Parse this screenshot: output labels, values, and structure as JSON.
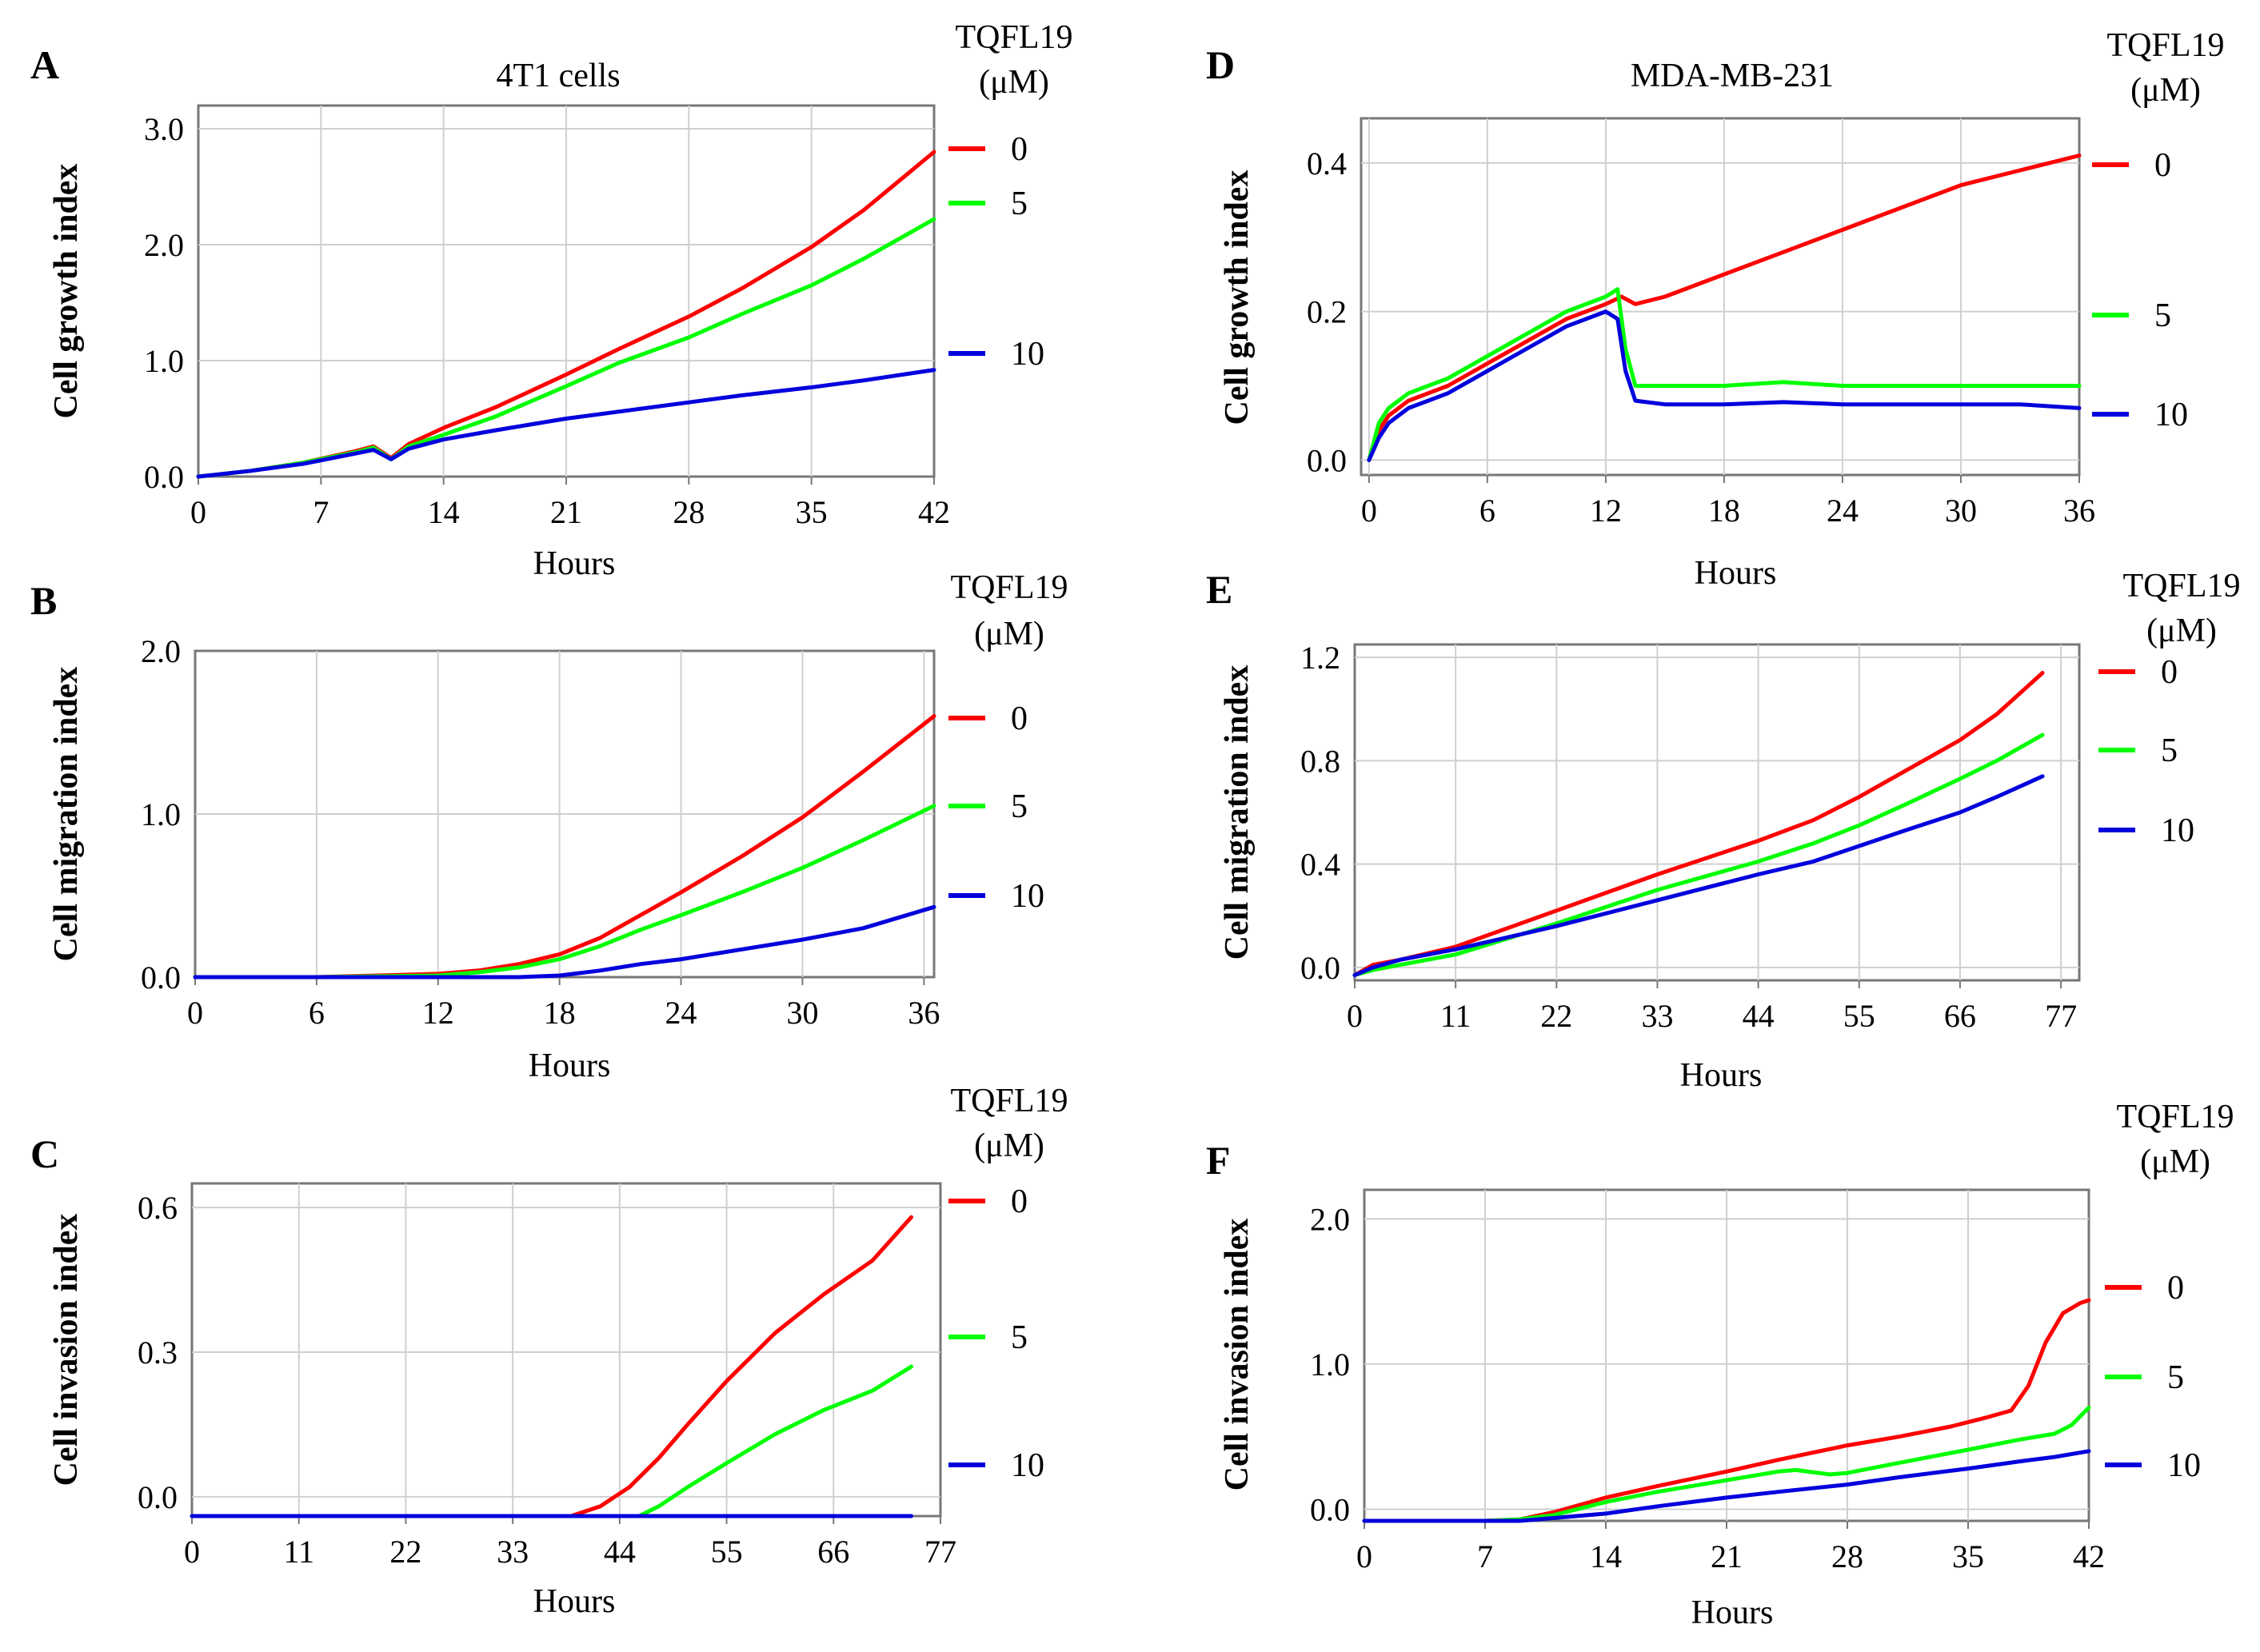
{
  "figure": {
    "colors": {
      "dose_0": "#ff0000",
      "dose_5": "#00ff00",
      "dose_10": "#0000dd",
      "grid": "#cfcfcf",
      "axis": "#777777",
      "text": "#000000"
    }
  },
  "chart_data": [
    {
      "type": "line",
      "panel": "A",
      "title": "4T1 cells",
      "xlabel": "Hours",
      "ylabel": "Cell growth index",
      "legend_title": [
        "TQFL19",
        "(μM)"
      ],
      "xticks": [
        0,
        7,
        14,
        21,
        28,
        35,
        42
      ],
      "yticks": [
        0.0,
        1.0,
        2.0,
        3.0
      ],
      "ytick_labels": [
        "0.0",
        "1.0",
        "2.0",
        "3.0"
      ],
      "xlim": [
        0,
        42
      ],
      "ylim": [
        0,
        3.2
      ],
      "series": [
        {
          "name": "0",
          "color": "#ff0000",
          "x": [
            0,
            3,
            6,
            9,
            10,
            11,
            12,
            14,
            17,
            21,
            24,
            28,
            31,
            35,
            38,
            42
          ],
          "y": [
            0.0,
            0.05,
            0.12,
            0.22,
            0.26,
            0.16,
            0.28,
            0.42,
            0.6,
            0.88,
            1.1,
            1.38,
            1.62,
            1.98,
            2.3,
            2.8
          ]
        },
        {
          "name": "5",
          "color": "#00ff00",
          "x": [
            0,
            3,
            6,
            9,
            10,
            11,
            12,
            14,
            17,
            21,
            24,
            28,
            31,
            35,
            38,
            42
          ],
          "y": [
            0.0,
            0.05,
            0.12,
            0.21,
            0.25,
            0.15,
            0.26,
            0.36,
            0.52,
            0.78,
            0.98,
            1.2,
            1.4,
            1.65,
            1.88,
            2.22
          ]
        },
        {
          "name": "10",
          "color": "#0000dd",
          "x": [
            0,
            3,
            6,
            9,
            10,
            11,
            12,
            14,
            17,
            21,
            24,
            28,
            31,
            35,
            38,
            42
          ],
          "y": [
            0.0,
            0.05,
            0.11,
            0.2,
            0.23,
            0.15,
            0.24,
            0.32,
            0.4,
            0.5,
            0.56,
            0.64,
            0.7,
            0.77,
            0.83,
            0.92
          ]
        }
      ]
    },
    {
      "type": "line",
      "panel": "B",
      "xlabel": "Hours",
      "ylabel": "Cell migration index",
      "legend_title": [
        "TQFL19",
        "(μM)"
      ],
      "xticks": [
        0,
        6,
        12,
        18,
        24,
        30,
        36
      ],
      "yticks": [
        0.0,
        1.0,
        2.0
      ],
      "ytick_labels": [
        "0.0",
        "1.0",
        "2.0"
      ],
      "xlim": [
        0,
        36.5
      ],
      "ylim": [
        0,
        2.0
      ],
      "series": [
        {
          "name": "0",
          "color": "#ff0000",
          "x": [
            0,
            6,
            12,
            14,
            16,
            18,
            20,
            22,
            24,
            27,
            30,
            33,
            36.5
          ],
          "y": [
            0,
            0,
            0.02,
            0.04,
            0.08,
            0.14,
            0.24,
            0.38,
            0.52,
            0.74,
            0.98,
            1.26,
            1.6
          ]
        },
        {
          "name": "5",
          "color": "#00ff00",
          "x": [
            0,
            6,
            12,
            14,
            16,
            18,
            20,
            22,
            24,
            27,
            30,
            33,
            36.5
          ],
          "y": [
            0,
            0,
            0.01,
            0.03,
            0.06,
            0.11,
            0.19,
            0.29,
            0.38,
            0.52,
            0.67,
            0.84,
            1.05
          ]
        },
        {
          "name": "10",
          "color": "#0000dd",
          "x": [
            0,
            6,
            12,
            14,
            16,
            18,
            20,
            22,
            24,
            27,
            30,
            33,
            36.5
          ],
          "y": [
            0,
            0,
            0,
            0,
            0,
            0.01,
            0.04,
            0.08,
            0.11,
            0.17,
            0.23,
            0.3,
            0.43
          ]
        }
      ]
    },
    {
      "type": "line",
      "panel": "C",
      "xlabel": "Hours",
      "ylabel": "Cell invasion index",
      "legend_title": [
        "TQFL19",
        "(μM)"
      ],
      "xticks": [
        0,
        11,
        22,
        33,
        44,
        55,
        66,
        77
      ],
      "yticks": [
        0.0,
        0.3,
        0.6
      ],
      "ytick_labels": [
        "0.0",
        "0.3",
        "0.6"
      ],
      "xlim": [
        0,
        77
      ],
      "ylim": [
        -0.04,
        0.65
      ],
      "series": [
        {
          "name": "0",
          "color": "#ff0000",
          "x": [
            0,
            20,
            35,
            39,
            42,
            45,
            48,
            51,
            55,
            60,
            65,
            70,
            74
          ],
          "y": [
            -0.04,
            -0.04,
            -0.04,
            -0.04,
            -0.02,
            0.02,
            0.08,
            0.15,
            0.24,
            0.34,
            0.42,
            0.49,
            0.58
          ]
        },
        {
          "name": "5",
          "color": "#00ff00",
          "x": [
            0,
            20,
            40,
            46,
            48,
            51,
            55,
            60,
            65,
            70,
            74
          ],
          "y": [
            -0.04,
            -0.04,
            -0.04,
            -0.04,
            -0.02,
            0.02,
            0.07,
            0.13,
            0.18,
            0.22,
            0.27
          ]
        },
        {
          "name": "10",
          "color": "#0000dd",
          "x": [
            0,
            74
          ],
          "y": [
            -0.04,
            -0.04
          ]
        }
      ]
    },
    {
      "type": "line",
      "panel": "D",
      "title": "MDA-MB-231",
      "xlabel": "Hours",
      "ylabel": "Cell growth index",
      "legend_title": [
        "TQFL19",
        "(μM)"
      ],
      "xticks": [
        0,
        6,
        12,
        18,
        24,
        30,
        36
      ],
      "yticks": [
        0.0,
        0.2,
        0.4
      ],
      "ytick_labels": [
        "0.0",
        "0.2",
        "0.4"
      ],
      "xlim": [
        -0.4,
        36
      ],
      "ylim": [
        -0.02,
        0.46
      ],
      "series": [
        {
          "name": "0",
          "color": "#ff0000",
          "x": [
            0,
            0.5,
            1,
            2,
            3,
            4,
            6,
            8,
            10,
            12,
            12.8,
            13.5,
            15,
            18,
            21,
            24,
            27,
            30,
            33,
            36
          ],
          "y": [
            0,
            0.04,
            0.06,
            0.08,
            0.09,
            0.1,
            0.13,
            0.16,
            0.19,
            0.21,
            0.22,
            0.21,
            0.22,
            0.25,
            0.28,
            0.31,
            0.34,
            0.37,
            0.39,
            0.41
          ]
        },
        {
          "name": "5",
          "color": "#00ff00",
          "x": [
            0,
            0.5,
            1,
            2,
            3,
            4,
            6,
            8,
            10,
            12,
            12.6,
            13,
            13.5,
            15,
            18,
            21,
            24,
            27,
            30,
            33,
            36
          ],
          "y": [
            0,
            0.05,
            0.07,
            0.09,
            0.1,
            0.11,
            0.14,
            0.17,
            0.2,
            0.22,
            0.23,
            0.15,
            0.1,
            0.1,
            0.1,
            0.105,
            0.1,
            0.1,
            0.1,
            0.1,
            0.1
          ]
        },
        {
          "name": "10",
          "color": "#0000dd",
          "x": [
            0,
            0.5,
            1,
            2,
            3,
            4,
            6,
            8,
            10,
            12,
            12.6,
            13,
            13.5,
            15,
            18,
            21,
            24,
            27,
            30,
            33,
            36
          ],
          "y": [
            0,
            0.03,
            0.05,
            0.07,
            0.08,
            0.09,
            0.12,
            0.15,
            0.18,
            0.2,
            0.19,
            0.12,
            0.08,
            0.075,
            0.075,
            0.078,
            0.075,
            0.075,
            0.075,
            0.075,
            0.07
          ]
        }
      ]
    },
    {
      "type": "line",
      "panel": "E",
      "xlabel": "Hours",
      "ylabel": "Cell migration index",
      "legend_title": [
        "TQFL19",
        "(μM)"
      ],
      "xticks": [
        0,
        11,
        22,
        33,
        44,
        55,
        66,
        77
      ],
      "yticks": [
        0.0,
        0.4,
        0.8,
        1.2
      ],
      "ytick_labels": [
        "0.0",
        "0.4",
        "0.8",
        "1.2"
      ],
      "xlim": [
        0,
        79
      ],
      "ylim": [
        -0.05,
        1.25
      ],
      "series": [
        {
          "name": "0",
          "color": "#ff0000",
          "x": [
            0,
            2,
            5,
            11,
            22,
            33,
            44,
            50,
            55,
            60,
            66,
            70,
            75
          ],
          "y": [
            -0.03,
            0.01,
            0.03,
            0.08,
            0.22,
            0.36,
            0.49,
            0.57,
            0.66,
            0.76,
            0.88,
            0.98,
            1.14
          ]
        },
        {
          "name": "5",
          "color": "#00ff00",
          "x": [
            0,
            2,
            5,
            11,
            22,
            33,
            44,
            50,
            55,
            60,
            66,
            70,
            75
          ],
          "y": [
            -0.03,
            -0.01,
            0.01,
            0.05,
            0.17,
            0.3,
            0.41,
            0.48,
            0.55,
            0.63,
            0.73,
            0.8,
            0.9
          ]
        },
        {
          "name": "10",
          "color": "#0000dd",
          "x": [
            0,
            2,
            5,
            11,
            22,
            33,
            44,
            50,
            55,
            60,
            66,
            70,
            75
          ],
          "y": [
            -0.03,
            0.0,
            0.03,
            0.07,
            0.16,
            0.26,
            0.36,
            0.41,
            0.47,
            0.53,
            0.6,
            0.66,
            0.74
          ]
        }
      ]
    },
    {
      "type": "line",
      "panel": "F",
      "xlabel": "Hours",
      "ylabel": "Cell invasion index",
      "legend_title": [
        "TQFL19",
        "(μM)"
      ],
      "xticks": [
        0,
        7,
        14,
        21,
        28,
        35,
        42
      ],
      "yticks": [
        0.0,
        1.0,
        2.0
      ],
      "ytick_labels": [
        "0.0",
        "1.0",
        "2.0"
      ],
      "xlim": [
        0,
        42
      ],
      "ylim": [
        -0.08,
        2.2
      ],
      "series": [
        {
          "name": "0",
          "color": "#ff0000",
          "x": [
            0,
            7,
            9,
            11,
            14,
            17,
            21,
            24,
            28,
            31,
            34,
            36,
            37.5,
            38.5,
            39.5,
            40.5,
            41.5,
            42
          ],
          "y": [
            -0.08,
            -0.08,
            -0.07,
            -0.02,
            0.08,
            0.16,
            0.26,
            0.34,
            0.44,
            0.5,
            0.57,
            0.63,
            0.68,
            0.85,
            1.15,
            1.35,
            1.42,
            1.44
          ]
        },
        {
          "name": "5",
          "color": "#00ff00",
          "x": [
            0,
            7,
            9,
            11,
            14,
            17,
            21,
            24,
            25,
            27,
            28,
            31,
            35,
            38,
            40,
            41,
            42
          ],
          "y": [
            -0.08,
            -0.08,
            -0.07,
            -0.04,
            0.05,
            0.12,
            0.2,
            0.26,
            0.27,
            0.24,
            0.25,
            0.32,
            0.41,
            0.48,
            0.52,
            0.58,
            0.7
          ]
        },
        {
          "name": "10",
          "color": "#0000dd",
          "x": [
            0,
            7,
            9,
            11,
            14,
            17,
            21,
            24,
            28,
            31,
            35,
            38,
            40,
            42
          ],
          "y": [
            -0.08,
            -0.08,
            -0.08,
            -0.06,
            -0.03,
            0.02,
            0.08,
            0.12,
            0.17,
            0.22,
            0.28,
            0.33,
            0.36,
            0.4
          ]
        }
      ]
    }
  ]
}
